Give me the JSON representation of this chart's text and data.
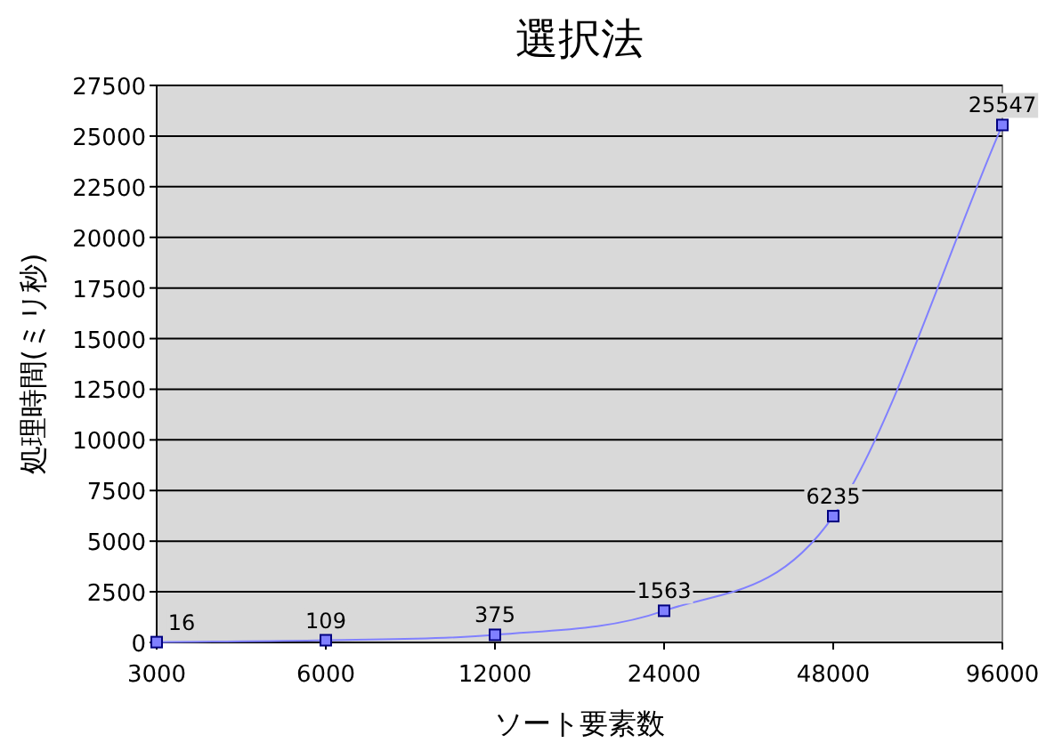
{
  "chart_data": {
    "type": "line",
    "title": "選択法",
    "xlabel": "ソート要素数",
    "ylabel": "処理時間(ミリ秒)",
    "categories": [
      "3000",
      "6000",
      "12000",
      "24000",
      "48000",
      "96000"
    ],
    "values": [
      16,
      109,
      375,
      1563,
      6235,
      25547
    ],
    "color": "#8080ff",
    "ylim": [
      0,
      27500
    ],
    "yticks": [
      0,
      2500,
      5000,
      7500,
      10000,
      12500,
      15000,
      17500,
      20000,
      22500,
      25000,
      27500
    ],
    "grid": "y",
    "data_labels": true,
    "marker": "square"
  }
}
